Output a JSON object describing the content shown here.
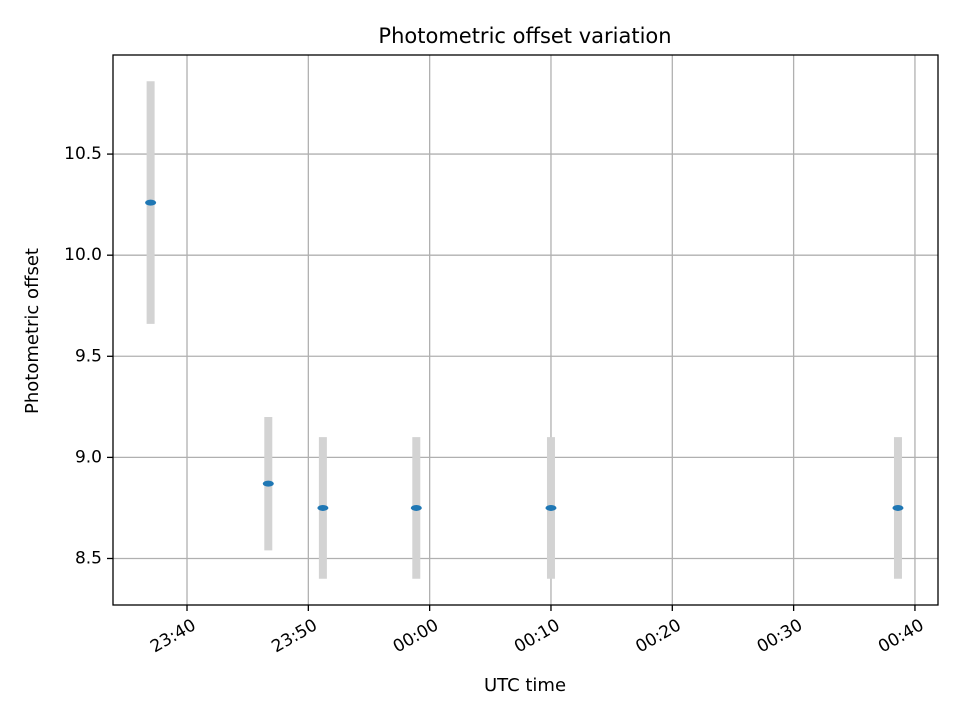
{
  "chart_data": {
    "type": "scatter",
    "title": "Photometric offset variation",
    "xlabel": "UTC time",
    "ylabel": "Photometric offset",
    "x_ticks": [
      "23:40",
      "23:50",
      "00:00",
      "00:10",
      "00:20",
      "00:30",
      "00:40"
    ],
    "y_ticks": [
      "8.5",
      "9.0",
      "9.5",
      "10.0",
      "10.5"
    ],
    "xlim": [
      "23:33:54",
      "00:41:54"
    ],
    "ylim": [
      8.27,
      10.99
    ],
    "grid": true,
    "series": [
      {
        "color": "#1f77b4",
        "errorbar_color": "#d3d3d3",
        "points": [
          {
            "x": "23:37:00",
            "y": 10.26,
            "err": 0.6
          },
          {
            "x": "23:46:42",
            "y": 8.87,
            "err": 0.33
          },
          {
            "x": "23:51:12",
            "y": 8.75,
            "err": 0.35
          },
          {
            "x": "23:58:54",
            "y": 8.75,
            "err": 0.35
          },
          {
            "x": "00:10:00",
            "y": 8.75,
            "err": 0.35
          },
          {
            "x": "00:38:36",
            "y": 8.75,
            "err": 0.35
          }
        ]
      }
    ]
  }
}
